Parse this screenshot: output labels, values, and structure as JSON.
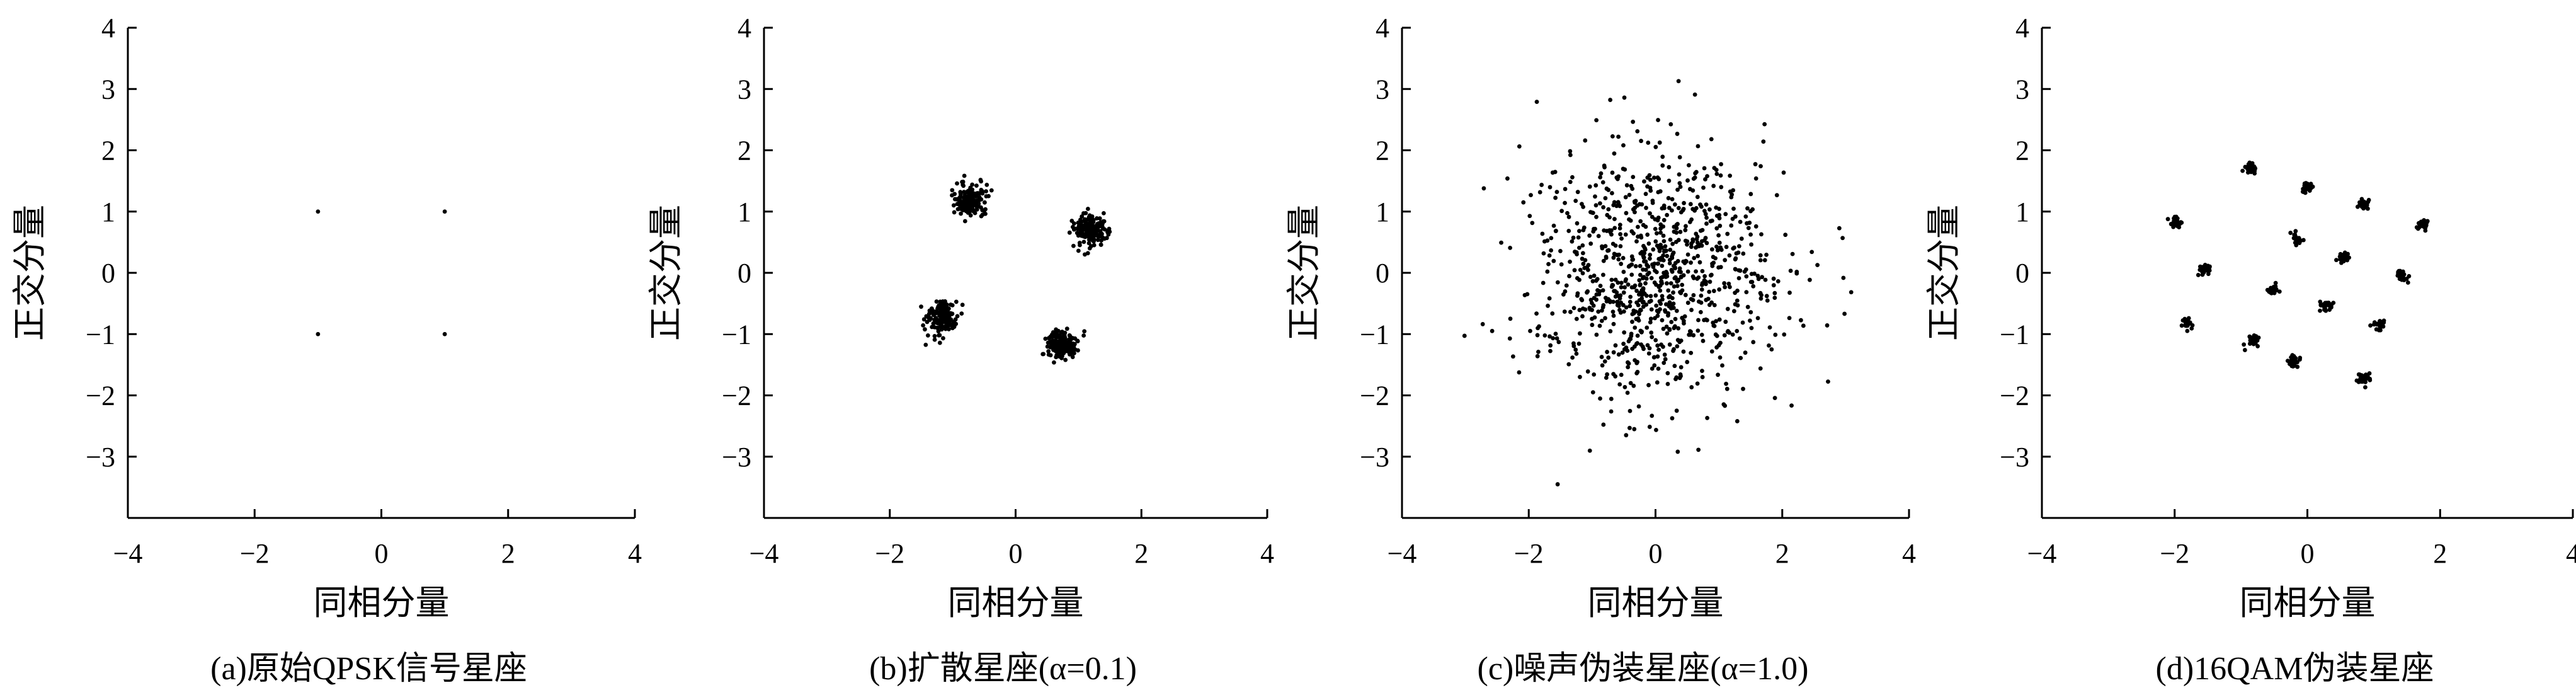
{
  "chart_data": [
    {
      "type": "scatter",
      "caption": "(a)原始QPSK信号星座",
      "xlabel": "同相分量",
      "ylabel": "正交分量",
      "xlim": [
        -4,
        4
      ],
      "ylim": [
        -4,
        4
      ],
      "xticks": [
        "−4",
        "−2",
        "0",
        "2",
        "4"
      ],
      "yticks": [
        "4",
        "3",
        "2",
        "1",
        "0",
        "−1",
        "−2",
        "−3"
      ],
      "grid": false,
      "points": [
        [
          1,
          1
        ],
        [
          -1,
          1
        ],
        [
          -1,
          -1
        ],
        [
          1,
          -1
        ]
      ]
    },
    {
      "type": "scatter",
      "caption": "(b)扩散星座(α=0.1)",
      "xlabel": "同相分量",
      "ylabel": "正交分量",
      "xlim": [
        -4,
        4
      ],
      "ylim": [
        -4,
        4
      ],
      "xticks": [
        "−4",
        "−2",
        "0",
        "2",
        "4"
      ],
      "yticks": [
        "4",
        "3",
        "2",
        "1",
        "0",
        "−1",
        "−2",
        "−3"
      ],
      "grid": false,
      "clusters": [
        {
          "center": [
            -0.72,
            1.18
          ],
          "spread": 0.13,
          "count": 170
        },
        {
          "center": [
            1.18,
            0.72
          ],
          "spread": 0.13,
          "count": 170
        },
        {
          "center": [
            -1.18,
            -0.72
          ],
          "spread": 0.13,
          "count": 170
        },
        {
          "center": [
            0.72,
            -1.18
          ],
          "spread": 0.13,
          "count": 170
        }
      ]
    },
    {
      "type": "scatter",
      "caption": "(c)噪声伪装星座(α=1.0)",
      "xlabel": "同相分量",
      "ylabel": "正交分量",
      "xlim": [
        -4,
        4
      ],
      "ylim": [
        -4,
        4
      ],
      "xticks": [
        "−4",
        "−2",
        "0",
        "2",
        "4"
      ],
      "yticks": [
        "4",
        "3",
        "2",
        "1",
        "0",
        "−1",
        "−2",
        "−3"
      ],
      "grid": false,
      "clusters": [
        {
          "center": [
            0,
            0
          ],
          "spread": 1.0,
          "count": 1000
        }
      ]
    },
    {
      "type": "scatter",
      "caption": "(d)16QAM伪装星座",
      "xlabel": "同相分量",
      "ylabel": "正交分量",
      "xlim": [
        -4,
        4
      ],
      "ylim": [
        -4,
        4
      ],
      "xticks": [
        "−4",
        "−2",
        "0",
        "2",
        "4"
      ],
      "yticks": [
        "4",
        "3",
        "2",
        "1",
        "0",
        "−1",
        "−2",
        "−3"
      ],
      "grid": false,
      "clusters": [
        {
          "center": [
            -0.85,
            1.72
          ],
          "spread": 0.045,
          "count": 28
        },
        {
          "center": [
            0.0,
            1.4
          ],
          "spread": 0.045,
          "count": 28
        },
        {
          "center": [
            -1.98,
            0.82
          ],
          "spread": 0.045,
          "count": 28
        },
        {
          "center": [
            -1.55,
            0.05
          ],
          "spread": 0.045,
          "count": 28
        },
        {
          "center": [
            -1.8,
            -0.83
          ],
          "spread": 0.045,
          "count": 28
        },
        {
          "center": [
            -0.83,
            -1.12
          ],
          "spread": 0.045,
          "count": 28
        },
        {
          "center": [
            -0.52,
            -0.28
          ],
          "spread": 0.045,
          "count": 28
        },
        {
          "center": [
            -0.15,
            0.55
          ],
          "spread": 0.045,
          "count": 28
        },
        {
          "center": [
            0.55,
            0.25
          ],
          "spread": 0.045,
          "count": 28
        },
        {
          "center": [
            0.28,
            -0.55
          ],
          "spread": 0.045,
          "count": 28
        },
        {
          "center": [
            0.85,
            1.12
          ],
          "spread": 0.045,
          "count": 28
        },
        {
          "center": [
            1.75,
            0.8
          ],
          "spread": 0.045,
          "count": 28
        },
        {
          "center": [
            1.42,
            -0.05
          ],
          "spread": 0.045,
          "count": 28
        },
        {
          "center": [
            1.1,
            -0.85
          ],
          "spread": 0.045,
          "count": 28
        },
        {
          "center": [
            -0.2,
            -1.45
          ],
          "spread": 0.045,
          "count": 28
        },
        {
          "center": [
            0.85,
            -1.72
          ],
          "spread": 0.045,
          "count": 28
        }
      ]
    }
  ]
}
